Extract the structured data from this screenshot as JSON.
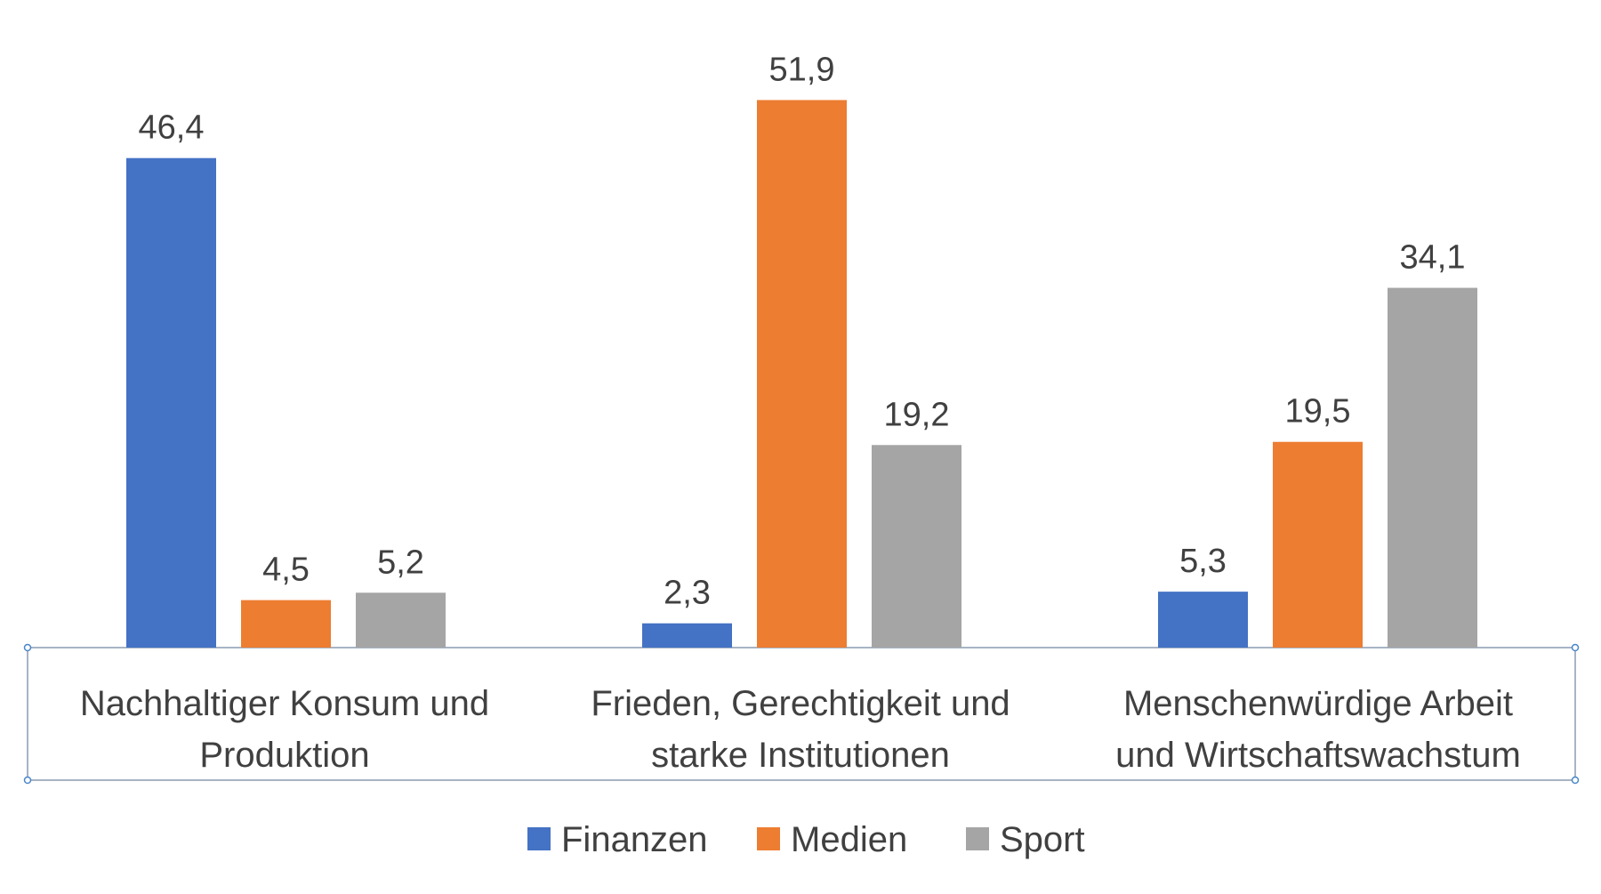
{
  "chart_data": {
    "type": "bar",
    "title": "",
    "xlabel": "",
    "ylabel": "",
    "ylim": [
      0,
      55
    ],
    "grid": false,
    "legend_position": "bottom",
    "categories": [
      [
        "Nachhaltiger Konsum und",
        "Produktion"
      ],
      [
        "Frieden, Gerechtigkeit und",
        "starke Institutionen"
      ],
      [
        "Menschenwürdige Arbeit",
        "und Wirtschaftswachstum"
      ]
    ],
    "series": [
      {
        "name": "Finanzen",
        "color": "#4472C4",
        "values": [
          46.4,
          2.3,
          5.3
        ],
        "labels": [
          "46,4",
          "2,3",
          "5,3"
        ]
      },
      {
        "name": "Medien",
        "color": "#ED7D31",
        "values": [
          4.5,
          51.9,
          19.5
        ],
        "labels": [
          "4,5",
          "51,9",
          "19,5"
        ]
      },
      {
        "name": "Sport",
        "color": "#A5A5A5",
        "values": [
          5.2,
          19.2,
          34.1
        ],
        "labels": [
          "5,2",
          "19,2",
          "34,1"
        ]
      }
    ]
  }
}
